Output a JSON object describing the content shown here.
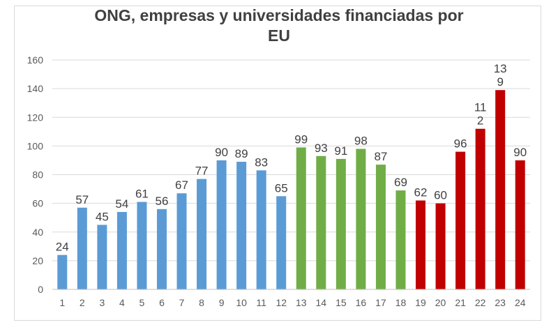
{
  "chart_data": {
    "type": "bar",
    "title": "ONG, empresas y universidades financiadas por EU",
    "title_lines": [
      "ONG, empresas y universidades financiadas por",
      "EU"
    ],
    "xlabel": "",
    "ylabel": "",
    "ylim": [
      0,
      160
    ],
    "ytick_step": 20,
    "y_ticks": [
      "0",
      "20",
      "40",
      "60",
      "80",
      "100",
      "120",
      "140",
      "160"
    ],
    "grid": true,
    "categories": [
      "1",
      "2",
      "3",
      "4",
      "5",
      "6",
      "7",
      "8",
      "9",
      "10",
      "11",
      "12",
      "13",
      "14",
      "15",
      "16",
      "17",
      "18",
      "19",
      "20",
      "21",
      "22",
      "23",
      "24"
    ],
    "values": [
      24,
      57,
      45,
      54,
      61,
      56,
      67,
      77,
      90,
      89,
      83,
      65,
      99,
      93,
      91,
      98,
      87,
      69,
      62,
      60,
      96,
      112,
      139,
      90
    ],
    "data_labels": [
      [
        "24"
      ],
      [
        "57"
      ],
      [
        "45"
      ],
      [
        "54"
      ],
      [
        "61"
      ],
      [
        "56"
      ],
      [
        "67"
      ],
      [
        "77"
      ],
      [
        "90"
      ],
      [
        "89"
      ],
      [
        "83"
      ],
      [
        "65"
      ],
      [
        "99"
      ],
      [
        "93"
      ],
      [
        "91"
      ],
      [
        "98"
      ],
      [
        "87"
      ],
      [
        "69"
      ],
      [
        "62"
      ],
      [
        "60"
      ],
      [
        "96"
      ],
      [
        "11",
        "2"
      ],
      [
        "13",
        "9"
      ],
      [
        "90"
      ]
    ],
    "bar_colors": [
      "#5b9bd5",
      "#5b9bd5",
      "#5b9bd5",
      "#5b9bd5",
      "#5b9bd5",
      "#5b9bd5",
      "#5b9bd5",
      "#5b9bd5",
      "#5b9bd5",
      "#5b9bd5",
      "#5b9bd5",
      "#5b9bd5",
      "#70ad47",
      "#70ad47",
      "#70ad47",
      "#70ad47",
      "#70ad47",
      "#70ad47",
      "#c00000",
      "#c00000",
      "#c00000",
      "#c00000",
      "#c00000",
      "#c00000"
    ],
    "gridline_color": "#d9d9d9",
    "axis_color": "#bfbfbf"
  }
}
